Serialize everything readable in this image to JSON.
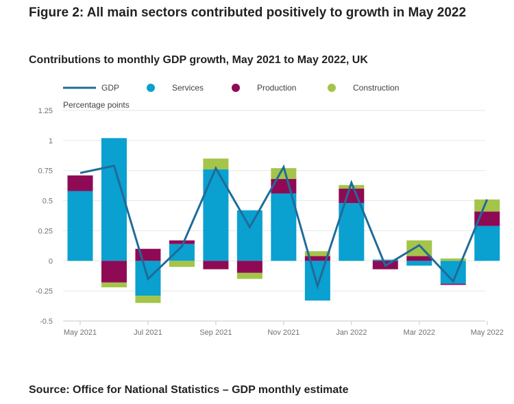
{
  "title": "Figure 2: All main sectors contributed positively to growth in May 2022",
  "chart_data": {
    "type": "bar",
    "stacked": true,
    "title": "Contributions to monthly GDP growth, May 2021 to May 2022, UK",
    "ylabel": "Percentage points",
    "xlabel": "",
    "ylim": [
      -0.5,
      1.25
    ],
    "yticks": [
      1.25,
      1,
      0.75,
      0.5,
      0.25,
      0,
      -0.25,
      -0.5
    ],
    "ytick_labels": [
      "1.25",
      "1",
      "0.75",
      "0.5",
      "0.25",
      "0",
      "-0.25",
      "-0.5"
    ],
    "categories": [
      "May 2021",
      "Jun 2021",
      "Jul 2021",
      "Aug 2021",
      "Sep 2021",
      "Oct 2021",
      "Nov 2021",
      "Dec 2021",
      "Jan 2022",
      "Feb 2022",
      "Mar 2022",
      "Apr 2022",
      "May 2022"
    ],
    "xtick_labels": [
      "May 2021",
      "Jul 2021",
      "Sep 2021",
      "Nov 2021",
      "Jan 2022",
      "Mar 2022",
      "May 2022"
    ],
    "grid": true,
    "legend_position": "top",
    "series": [
      {
        "name": "Services",
        "kind": "bar",
        "color": "#0aa0d0",
        "values": [
          0.58,
          1.02,
          -0.29,
          0.14,
          0.76,
          0.42,
          0.56,
          -0.33,
          0.48,
          0.01,
          -0.04,
          -0.19,
          0.29
        ]
      },
      {
        "name": "Production",
        "kind": "bar",
        "color": "#8f0a55",
        "values": [
          0.13,
          -0.18,
          0.1,
          0.03,
          -0.07,
          -0.1,
          0.12,
          0.04,
          0.12,
          -0.07,
          0.04,
          -0.01,
          0.12
        ]
      },
      {
        "name": "Construction",
        "kind": "bar",
        "color": "#a4c44a",
        "values": [
          0.0,
          -0.04,
          -0.06,
          -0.05,
          0.09,
          -0.05,
          0.09,
          0.04,
          0.03,
          0.0,
          0.13,
          0.02,
          0.1
        ]
      },
      {
        "name": "GDP",
        "kind": "line",
        "color": "#1f6b99",
        "values": [
          0.73,
          0.79,
          -0.15,
          0.12,
          0.77,
          0.28,
          0.78,
          -0.21,
          0.65,
          -0.04,
          0.13,
          -0.17,
          0.51
        ]
      }
    ]
  },
  "source": "Source: Office for National Statistics – GDP monthly estimate"
}
